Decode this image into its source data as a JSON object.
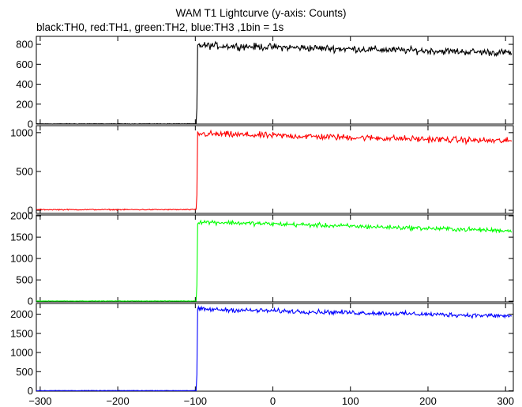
{
  "title": "WAM T1 Lightcurve (y-axis: Counts)",
  "subtitle": "black:TH0, red:TH1, green:TH2, blue:TH3 ,1bin = 1s",
  "chart_data": {
    "type": "line",
    "shared_x": {
      "xlim": [
        -305,
        310
      ],
      "ticks": [
        -300,
        -200,
        -100,
        0,
        100,
        200,
        300
      ],
      "tick_labels": [
        "−300",
        "−200",
        "−100",
        "0",
        "100",
        "200",
        "300"
      ]
    },
    "bin_seconds": 1,
    "grid": false,
    "panels": [
      {
        "name": "TH0",
        "color": "#000000",
        "ylim": [
          0,
          880
        ],
        "yticks": [
          0,
          200,
          400,
          600,
          800
        ],
        "ytick_labels": [
          "0",
          "200",
          "400",
          "600",
          "800"
        ],
        "baseline": 2,
        "onset_x": -98,
        "level_start": 790,
        "level_end": 715,
        "noise": 30
      },
      {
        "name": "TH1",
        "color": "#ff0000",
        "ylim": [
          -40,
          1090
        ],
        "yticks": [
          0,
          500,
          1000
        ],
        "ytick_labels": [
          "0",
          "500",
          "1000"
        ],
        "baseline": 8,
        "onset_x": -98,
        "level_start": 985,
        "level_end": 890,
        "noise": 35
      },
      {
        "name": "TH2",
        "color": "#00ff00",
        "ylim": [
          -15,
          2020
        ],
        "yticks": [
          0,
          500,
          1000,
          1500,
          2000
        ],
        "ytick_labels": [
          "0",
          "500",
          "1000",
          "1500",
          "2000"
        ],
        "baseline": 5,
        "onset_x": -98,
        "level_start": 1860,
        "level_end": 1650,
        "noise": 45
      },
      {
        "name": "TH3",
        "color": "#0000ff",
        "ylim": [
          -10,
          2280
        ],
        "yticks": [
          0,
          500,
          1000,
          1500,
          2000
        ],
        "ytick_labels": [
          "0",
          "500",
          "1000",
          "1500",
          "2000"
        ],
        "baseline": 5,
        "onset_x": -98,
        "level_start": 2130,
        "level_end": 1950,
        "noise": 50
      }
    ]
  }
}
